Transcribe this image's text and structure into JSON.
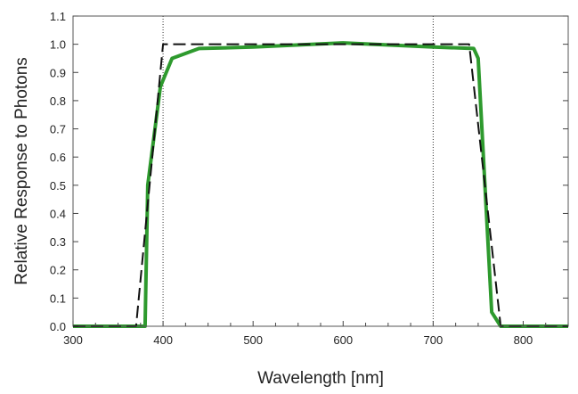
{
  "chart_data": {
    "type": "line",
    "title": "",
    "xlabel": "Wavelength [nm]",
    "ylabel": "Relative Response to Photons",
    "xlim": [
      300,
      850
    ],
    "ylim": [
      0.0,
      1.1
    ],
    "xticks": [
      "300",
      "400",
      "500",
      "600",
      "700",
      "800"
    ],
    "yticks": [
      "0.0",
      "0.1",
      "0.2",
      "0.3",
      "0.4",
      "0.5",
      "0.6",
      "0.7",
      "0.8",
      "0.9",
      "1.0",
      "1.1"
    ],
    "grid": false,
    "reference_lines_x": [
      400,
      700
    ],
    "series": [
      {
        "style": "dashed",
        "color": "#111111",
        "x": [
          300,
          370,
          400,
          740,
          775,
          850
        ],
        "y": [
          0,
          0,
          1.0,
          1.0,
          0,
          0
        ]
      },
      {
        "style": "solid",
        "color": "#2e9a2e",
        "x": [
          300,
          377,
          380,
          383,
          397,
          410,
          440,
          500,
          600,
          700,
          745,
          750,
          765,
          775,
          850
        ],
        "y": [
          0,
          0,
          0.0,
          0.5,
          0.85,
          0.95,
          0.985,
          0.99,
          1.005,
          0.99,
          0.985,
          0.95,
          0.05,
          0,
          0
        ]
      }
    ]
  }
}
